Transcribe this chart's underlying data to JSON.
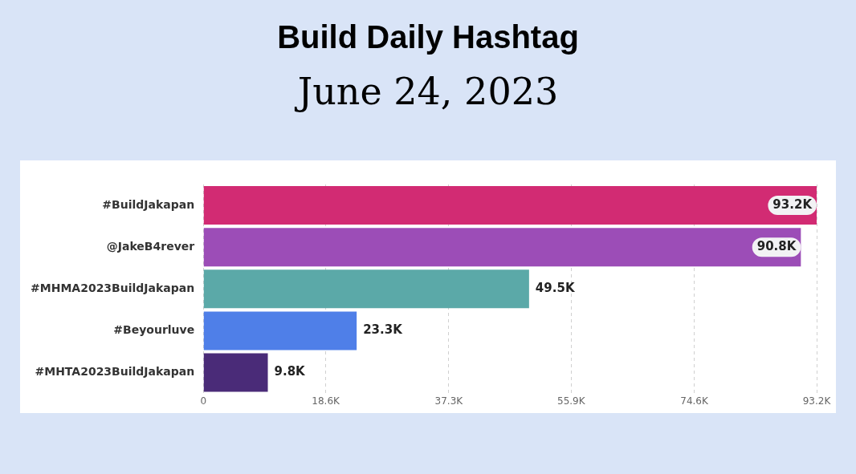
{
  "chart_data": {
    "type": "bar",
    "title": "Build Daily Hashtag",
    "subtitle": "June 24, 2023",
    "orientation": "horizontal",
    "categories": [
      "#BuildJakapan",
      "@JakeB4rever",
      "#MHMA2023BuildJakapan",
      "#Beyourluve",
      "#MHTA2023BuildJakapan"
    ],
    "values": [
      93.2,
      90.8,
      49.5,
      23.3,
      9.8
    ],
    "colors": [
      "#d22b73",
      "#9c4db7",
      "#5ba9a8",
      "#4f7fe8",
      "#4a2b78"
    ],
    "value_labels": [
      "93.2K",
      "90.8K",
      "49.5K",
      "23.3K",
      "9.8K"
    ],
    "xlim": [
      0,
      93.2
    ],
    "xticks": [
      0,
      {
        "value": 18.6,
        "label": "18.6K"
      },
      {
        "value": 37.3,
        "label": "37.3K"
      },
      {
        "value": 55.9,
        "label": "55.9K"
      },
      {
        "value": 74.6,
        "label": "74.6K"
      },
      {
        "value": 93.2,
        "label": "93.2K"
      }
    ],
    "grid": "x",
    "legend": false
  }
}
